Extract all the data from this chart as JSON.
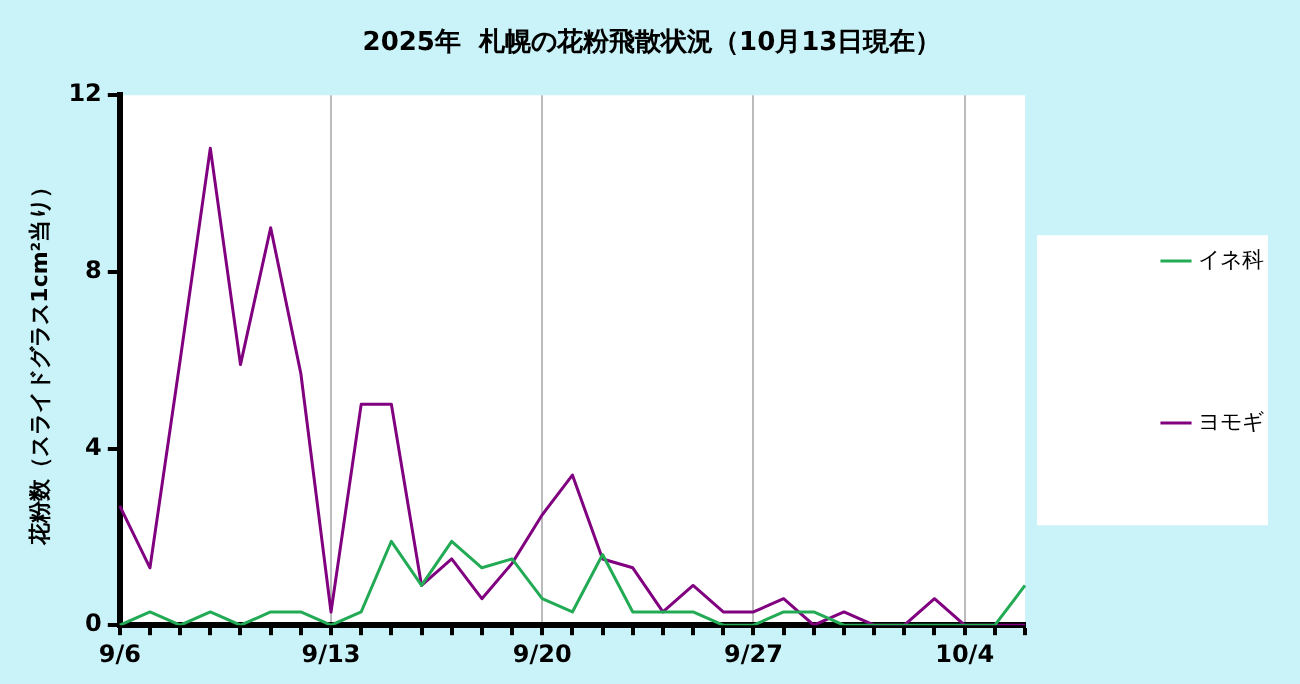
{
  "chart_data": {
    "type": "line",
    "title": "2025年  札幌の花粉飛散状況（10月13日現在）",
    "ylabel": "花粉数（スライドグラス1cm²当り）",
    "categories": [
      "9/6",
      null,
      null,
      null,
      null,
      null,
      null,
      "9/13",
      null,
      null,
      null,
      null,
      null,
      null,
      "9/20",
      null,
      null,
      null,
      null,
      null,
      null,
      "9/27",
      null,
      null,
      null,
      null,
      null,
      null,
      "10/4",
      null,
      null
    ],
    "series": [
      {
        "name": "イネ科",
        "color": "#22aa55",
        "values": [
          0,
          0.3,
          0,
          0.3,
          0,
          0.3,
          0.3,
          0,
          0.3,
          1.9,
          0.9,
          1.9,
          1.3,
          1.5,
          0.6,
          0.3,
          1.6,
          0.3,
          0.3,
          0.3,
          0,
          0,
          0.3,
          0.3,
          0,
          0,
          0,
          0,
          0,
          0,
          0.9
        ]
      },
      {
        "name": "ヨモギ",
        "color": "#800080",
        "values": [
          2.7,
          1.3,
          6.0,
          10.8,
          5.9,
          9.0,
          5.7,
          0.3,
          5.0,
          5.0,
          0.9,
          1.5,
          0.6,
          1.4,
          2.5,
          3.4,
          1.5,
          1.3,
          0.3,
          0.9,
          0.3,
          0.3,
          0.6,
          0,
          0.3,
          0,
          0,
          0.6,
          0,
          0,
          0
        ]
      }
    ],
    "ylim": [
      0,
      12
    ],
    "yticks": [
      0,
      4,
      8,
      12
    ],
    "grid": "x",
    "legend": "right",
    "marker": "none",
    "line_style": "solid"
  }
}
